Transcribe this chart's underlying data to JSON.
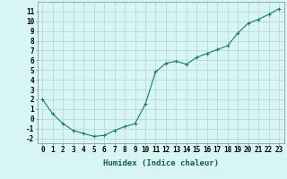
{
  "x": [
    0,
    1,
    2,
    3,
    4,
    5,
    6,
    7,
    8,
    9,
    10,
    11,
    12,
    13,
    14,
    15,
    16,
    17,
    18,
    19,
    20,
    21,
    22,
    23
  ],
  "y": [
    2.0,
    0.5,
    -0.5,
    -1.2,
    -1.5,
    -1.8,
    -1.7,
    -1.2,
    -0.8,
    -0.5,
    1.5,
    4.8,
    5.7,
    5.9,
    5.6,
    6.3,
    6.7,
    7.1,
    7.5,
    8.8,
    9.8,
    10.2,
    10.7,
    11.3
  ],
  "line_color": "#1a7a6e",
  "marker": "+",
  "bg_color": "#d8f5f5",
  "grid_color": "#b8d8d8",
  "xlabel": "Humidex (Indice chaleur)",
  "xlim": [
    -0.5,
    23.5
  ],
  "ylim": [
    -2.5,
    12.0
  ],
  "xticks": [
    0,
    1,
    2,
    3,
    4,
    5,
    6,
    7,
    8,
    9,
    10,
    11,
    12,
    13,
    14,
    15,
    16,
    17,
    18,
    19,
    20,
    21,
    22,
    23
  ],
  "yticks": [
    -2,
    -1,
    0,
    1,
    2,
    3,
    4,
    5,
    6,
    7,
    8,
    9,
    10,
    11
  ],
  "font_size": 5.5,
  "xlabel_fontsize": 6.5
}
